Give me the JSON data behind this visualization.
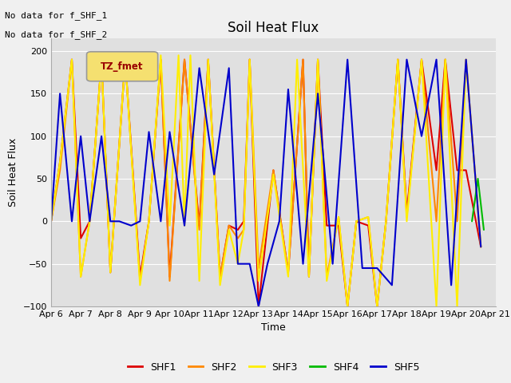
{
  "title": "Soil Heat Flux",
  "xlabel": "Time",
  "ylabel": "Soil Heat Flux",
  "annotation_line1": "No data for f_SHF_1",
  "annotation_line2": "No data for f_SHF_2",
  "legend_label": "TZ_fmet",
  "ylim": [
    -100,
    215
  ],
  "yticks": [
    -100,
    -50,
    0,
    50,
    100,
    150,
    200
  ],
  "xlim": [
    6,
    21
  ],
  "x_tick_pos": [
    6,
    7,
    8,
    9,
    10,
    11,
    12,
    13,
    14,
    15,
    16,
    17,
    18,
    19,
    20,
    21
  ],
  "x_labels": [
    "Apr 6",
    "Apr 7",
    "Apr 8",
    "Apr 9",
    "Apr 10",
    "Apr 11",
    "Apr 12",
    "Apr 13",
    "Apr 14",
    "Apr 15",
    "Apr 16",
    "Apr 17",
    "Apr 18",
    "Apr 19",
    "Apr 20",
    "Apr 21"
  ],
  "series": {
    "SHF1": {
      "color": "#dd0000",
      "x": [
        6.0,
        6.3,
        6.7,
        7.0,
        7.3,
        7.7,
        8.0,
        8.5,
        9.0,
        9.3,
        9.7,
        10.0,
        10.5,
        11.0,
        11.3,
        11.7,
        12.0,
        12.3,
        12.5,
        12.7,
        13.0,
        13.5,
        14.0,
        14.5,
        14.7,
        15.0,
        15.3,
        15.7,
        16.0,
        16.3,
        16.7,
        17.0,
        17.3,
        17.7,
        18.0,
        18.5,
        19.0,
        19.3,
        19.7,
        20.0,
        20.5
      ],
      "y": [
        0,
        70,
        190,
        -20,
        0,
        190,
        -60,
        190,
        -65,
        0,
        190,
        -65,
        190,
        -5,
        190,
        -65,
        -5,
        -10,
        0,
        190,
        -100,
        60,
        -60,
        190,
        -65,
        190,
        -5,
        -5,
        -100,
        0,
        -5,
        -100,
        0,
        190,
        10,
        190,
        60,
        190,
        60,
        60,
        -30
      ]
    },
    "SHF2": {
      "color": "#ff8800",
      "x": [
        6.0,
        6.3,
        6.7,
        7.0,
        7.3,
        7.7,
        8.0,
        8.5,
        9.0,
        9.3,
        9.7,
        10.0,
        10.5,
        11.0,
        11.3,
        11.7,
        12.0,
        12.3,
        12.5,
        12.7,
        13.0,
        13.5,
        14.0,
        14.5,
        14.7,
        15.0,
        15.3,
        15.7,
        16.0,
        16.3,
        16.7,
        17.0,
        17.3,
        17.7,
        18.0,
        18.5,
        19.0,
        19.3,
        19.7,
        20.0,
        20.5
      ],
      "y": [
        0,
        60,
        190,
        -65,
        0,
        190,
        -60,
        190,
        -70,
        0,
        190,
        -70,
        190,
        -10,
        190,
        -65,
        -5,
        -20,
        -10,
        190,
        -55,
        60,
        -60,
        190,
        -65,
        190,
        -65,
        5,
        -100,
        0,
        5,
        -100,
        0,
        190,
        5,
        190,
        0,
        190,
        0,
        190,
        -30
      ]
    },
    "SHF3": {
      "color": "#ffee00",
      "x": [
        6.0,
        6.3,
        6.7,
        7.0,
        7.3,
        7.7,
        8.0,
        8.5,
        9.0,
        9.3,
        9.7,
        10.0,
        10.3,
        10.5,
        10.7,
        11.0,
        11.3,
        11.7,
        12.0,
        12.3,
        12.5,
        12.7,
        13.0,
        13.5,
        14.0,
        14.3,
        14.7,
        15.0,
        15.3,
        15.7,
        16.0,
        16.3,
        16.7,
        17.0,
        17.3,
        17.7,
        18.0,
        18.5,
        19.0,
        19.3,
        19.7,
        20.0,
        20.5
      ],
      "y": [
        0,
        70,
        190,
        -65,
        0,
        190,
        -60,
        190,
        -75,
        0,
        195,
        -5,
        195,
        -5,
        195,
        -70,
        190,
        -75,
        -10,
        -50,
        -10,
        190,
        -70,
        55,
        -65,
        190,
        -65,
        190,
        -70,
        5,
        -100,
        0,
        5,
        -100,
        0,
        190,
        0,
        190,
        -100,
        190,
        -100,
        190,
        -30
      ]
    },
    "SHF4": {
      "color": "#00bb00",
      "x": [
        20.2,
        20.4,
        20.6
      ],
      "y": [
        0,
        50,
        -10
      ]
    },
    "SHF5": {
      "color": "#0000cc",
      "x": [
        6.0,
        6.3,
        6.7,
        7.0,
        7.3,
        7.7,
        8.0,
        8.3,
        8.7,
        9.0,
        9.3,
        9.7,
        10.0,
        10.5,
        11.0,
        11.5,
        12.0,
        12.3,
        12.7,
        13.0,
        13.3,
        13.7,
        14.0,
        14.5,
        15.0,
        15.5,
        16.0,
        16.5,
        17.0,
        17.5,
        18.0,
        18.5,
        19.0,
        19.5,
        20.0,
        20.5
      ],
      "y": [
        0,
        150,
        0,
        100,
        0,
        100,
        0,
        0,
        -5,
        0,
        105,
        0,
        105,
        -5,
        180,
        55,
        180,
        -50,
        -50,
        -100,
        -50,
        0,
        155,
        -50,
        150,
        -50,
        190,
        -55,
        -55,
        -75,
        190,
        100,
        190,
        -75,
        190,
        -30
      ]
    }
  },
  "fig_bg": "#f0f0f0",
  "plot_bg": "#e0e0e0",
  "grid_color": "#ffffff",
  "linewidth": 1.5
}
